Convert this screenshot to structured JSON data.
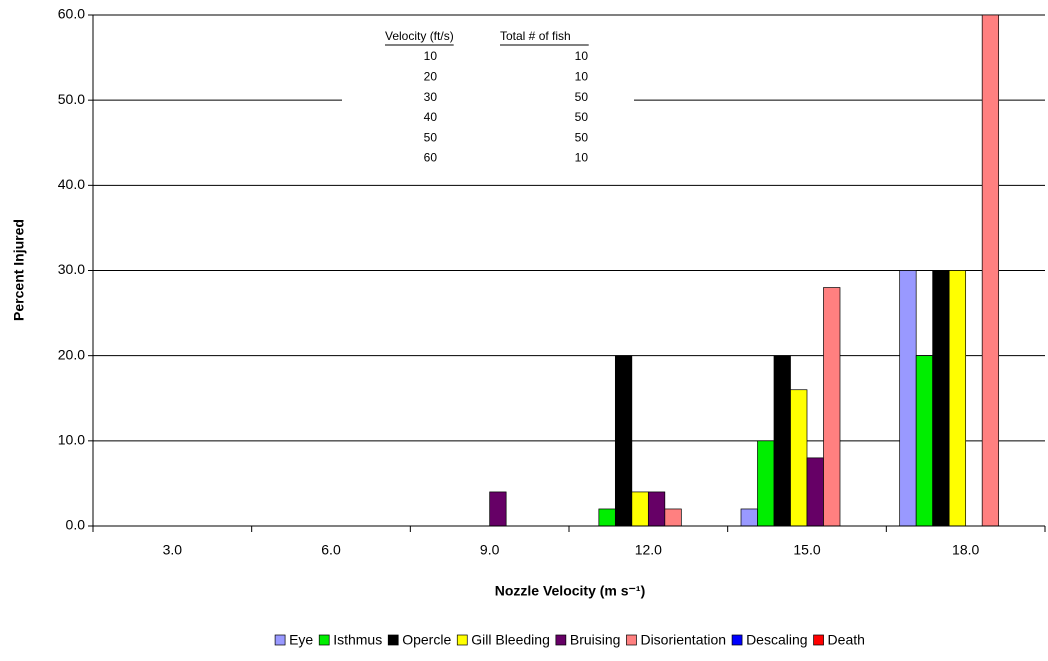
{
  "chart_data": {
    "type": "bar",
    "y_label": "Percent Injured",
    "x_label": "Nozzle Velocity (m s⁻¹)",
    "categories": [
      "3.0",
      "6.0",
      "9.0",
      "12.0",
      "15.0",
      "18.0"
    ],
    "series": [
      {
        "name": "Eye",
        "color": "#9999ff",
        "values": [
          0,
          0,
          0,
          0,
          2,
          30
        ]
      },
      {
        "name": "Isthmus",
        "color": "#00ee00",
        "values": [
          0,
          0,
          0,
          2,
          10,
          20
        ]
      },
      {
        "name": "Opercle",
        "color": "#000000",
        "values": [
          0,
          0,
          0,
          20,
          20,
          30
        ]
      },
      {
        "name": "Gill Bleeding",
        "color": "#ffff00",
        "values": [
          0,
          0,
          0,
          4,
          16,
          30
        ]
      },
      {
        "name": "Bruising",
        "color": "#660066",
        "values": [
          0,
          0,
          4,
          4,
          8,
          0
        ]
      },
      {
        "name": "Disorientation",
        "color": "#ff8080",
        "values": [
          0,
          0,
          0,
          2,
          28,
          60
        ]
      },
      {
        "name": "Descaling",
        "color": "#0000ff",
        "values": [
          0,
          0,
          0,
          0,
          0,
          0
        ]
      },
      {
        "name": "Death",
        "color": "#ff0000",
        "values": [
          0,
          0,
          0,
          0,
          0,
          0
        ]
      }
    ],
    "ylim": [
      0,
      60
    ],
    "yticks": [
      {
        "value": 0,
        "label": "0.0"
      },
      {
        "value": 10,
        "label": "10.0"
      },
      {
        "value": 20,
        "label": "20.0"
      },
      {
        "value": 30,
        "label": "30.0"
      },
      {
        "value": 40,
        "label": "40.0"
      },
      {
        "value": 50,
        "label": "50.0"
      },
      {
        "value": 60,
        "label": "60.0"
      }
    ],
    "grid": true,
    "legend": "bottom",
    "table": {
      "columns": [
        "Velocity (ft/s)",
        "Total # of fish"
      ],
      "rows": [
        [
          10,
          10
        ],
        [
          20,
          10
        ],
        [
          30,
          50
        ],
        [
          40,
          50
        ],
        [
          50,
          50
        ],
        [
          60,
          10
        ]
      ]
    }
  }
}
